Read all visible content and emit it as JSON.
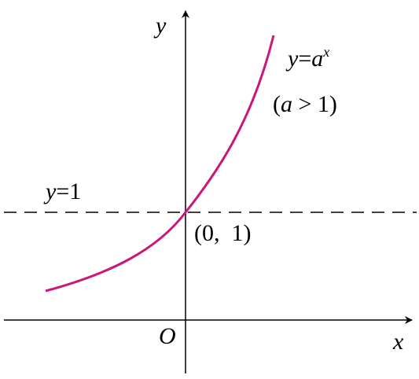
{
  "axes": {
    "x_label": "x",
    "y_label": "y",
    "origin_label": "O"
  },
  "curve_label": {
    "parts": [
      "y",
      "=",
      "a",
      "x"
    ]
  },
  "condition_label": {
    "parts": [
      "(",
      "a",
      " > 1)"
    ]
  },
  "asymptote_label": {
    "parts": [
      "y",
      "=1"
    ]
  },
  "point_label": "(0,  1)"
}
